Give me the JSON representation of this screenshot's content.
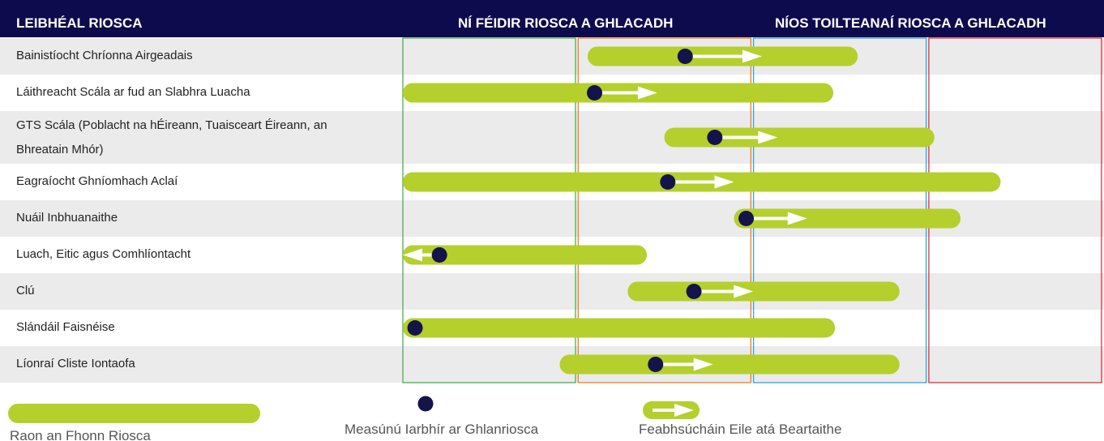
{
  "chart_data": {
    "type": "risk-range",
    "title": "LEIBHÉAL RIOSCA",
    "zone_headers": [
      "NÍ FÉIDIR RIOSCA A GHLACADH",
      "NÍOS TOILTEANAÍ RIOSCA A GHLACADH"
    ],
    "zone_colors": [
      "#4caf50",
      "#f07f22",
      "#2aa7df",
      "#e0303d"
    ],
    "xlim": [
      0,
      4
    ],
    "bar_color": "#b5cf2d",
    "dot_color": "#14144a",
    "rows": [
      {
        "label": "Bainistíocht Chríonna Airgeadais",
        "low": 1.06,
        "high": 2.61,
        "current": 1.62,
        "planned": 2.06
      },
      {
        "label": "Láithreacht Scála ar fud an Slabhra Luacha",
        "low": 0,
        "high": 2.47,
        "current": 1.1,
        "planned": 1.46
      },
      {
        "label": "GTS Scála (Poblacht na hÉireann, Tuaisceart Éireann, an Bhreatain Mhór)",
        "low": 1.5,
        "high": 3.05,
        "current": 1.79,
        "planned": 2.15
      },
      {
        "label": "Eagraíocht Ghníomhach Aclaí",
        "low": 0,
        "high": 3.43,
        "current": 1.52,
        "planned": 1.9
      },
      {
        "label": "Nuáil Inbhuanaithe",
        "low": 1.9,
        "high": 3.2,
        "current": 1.97,
        "planned": 2.32
      },
      {
        "label": "Luach, Eitic agus Comhlíontacht",
        "low": 0,
        "high": 1.4,
        "current": 0.21,
        "planned": 0
      },
      {
        "label": "Clú",
        "low": 1.29,
        "high": 2.85,
        "current": 1.67,
        "planned": 2.01
      },
      {
        "label": "Slándáil Faisnéise",
        "low": 0,
        "high": 2.48,
        "current": 0.07,
        "planned": null
      },
      {
        "label": "Líonraí Cliste Iontaofa",
        "low": 0.9,
        "high": 2.85,
        "current": 1.45,
        "planned": 1.78
      }
    ],
    "legend": [
      "Raon an Fhonn Riosca",
      "Measúnú Iarbhír ar Ghlanriosca",
      "Feabhsúcháin Eile atá Beartaithe"
    ]
  }
}
